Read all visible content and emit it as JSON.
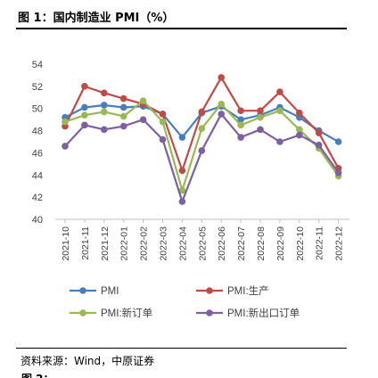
{
  "header": {
    "title": "图 1：国内制造业 PMI（%）"
  },
  "footer": {
    "source": "资料来源：Wind，中原证券"
  },
  "chart_data": {
    "type": "line",
    "title": "",
    "xlabel": "",
    "ylabel": "",
    "ylim": [
      40,
      54
    ],
    "yticks": [
      40,
      42,
      44,
      46,
      48,
      50,
      52,
      54
    ],
    "grid": "none",
    "legend_position": "bottom",
    "x": [
      "2021-10",
      "2021-11",
      "2021-12",
      "2022-01",
      "2022-02",
      "2022-03",
      "2022-04",
      "2022-05",
      "2022-06",
      "2022-07",
      "2022-08",
      "2022-09",
      "2022-10",
      "2022-11",
      "2022-12"
    ],
    "series": [
      {
        "name": "PMI",
        "color": "#4a7ebb",
        "values": [
          49.2,
          50.1,
          50.3,
          50.1,
          50.2,
          49.5,
          47.4,
          49.6,
          50.2,
          49.0,
          49.4,
          50.1,
          49.2,
          48.0,
          47.0
        ]
      },
      {
        "name": "PMI:生产",
        "color": "#be4b48",
        "values": [
          48.4,
          52.0,
          51.4,
          50.9,
          50.4,
          49.5,
          44.4,
          49.7,
          52.8,
          49.8,
          49.8,
          51.5,
          49.6,
          47.8,
          44.6
        ]
      },
      {
        "name": "PMI:新订单",
        "color": "#98b954",
        "values": [
          48.8,
          49.4,
          49.7,
          49.3,
          50.7,
          48.8,
          42.6,
          48.2,
          50.4,
          48.5,
          49.2,
          49.8,
          48.1,
          46.4,
          43.9
        ]
      },
      {
        "name": "PMI:新出口订单",
        "color": "#7d60a0",
        "values": [
          46.6,
          48.5,
          48.1,
          48.4,
          49.0,
          47.2,
          41.6,
          46.2,
          49.5,
          47.4,
          48.1,
          47.0,
          47.6,
          46.7,
          44.2
        ]
      }
    ]
  }
}
